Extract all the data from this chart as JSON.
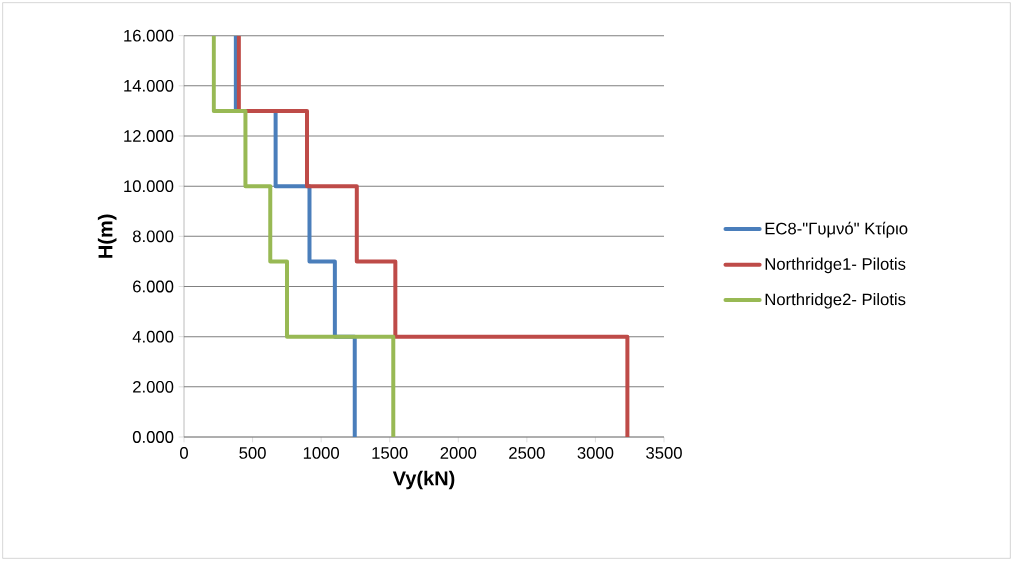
{
  "chart_data": {
    "type": "line",
    "xlabel": "Vy(kN)",
    "ylabel": "H(m)",
    "xlim": [
      0,
      3500
    ],
    "ylim": [
      0,
      16
    ],
    "xticks": [
      0,
      500,
      1000,
      1500,
      2000,
      2500,
      3000,
      3500
    ],
    "yticks": [
      {
        "value": 0,
        "label": "0.000"
      },
      {
        "value": 2,
        "label": "2.000"
      },
      {
        "value": 4,
        "label": "4.000"
      },
      {
        "value": 6,
        "label": "6.000"
      },
      {
        "value": 8,
        "label": "8.000"
      },
      {
        "value": 10,
        "label": "10.000"
      },
      {
        "value": 12,
        "label": "12.000"
      },
      {
        "value": 14,
        "label": "14.000"
      },
      {
        "value": 16,
        "label": "16.000"
      }
    ],
    "grid": "y",
    "legend": "right",
    "marker": "none",
    "line_style": "solid",
    "series": [
      {
        "name": "EC8-\"Γυμνό\" Κτίριο",
        "color": "#4a7ebb",
        "x": [
          1245,
          1245,
          1100,
          1100,
          915,
          915,
          668,
          668,
          378,
          378
        ],
        "values": [
          0,
          4,
          4,
          7,
          7,
          10,
          10,
          13,
          13,
          16
        ]
      },
      {
        "name": "Northridge1- Pilotis",
        "color": "#be4b48",
        "x": [
          3233,
          3233,
          1541,
          1541,
          1260,
          1260,
          897,
          897,
          400,
          400
        ],
        "values": [
          0,
          4,
          4,
          7,
          7,
          10,
          10,
          13,
          13,
          16
        ]
      },
      {
        "name": "Northridge2- Pilotis",
        "color": "#98b954",
        "x": [
          1526,
          1526,
          751,
          751,
          629,
          629,
          448,
          448,
          217,
          217
        ],
        "values": [
          0,
          4,
          4,
          7,
          7,
          10,
          10,
          13,
          13,
          16
        ]
      }
    ]
  }
}
